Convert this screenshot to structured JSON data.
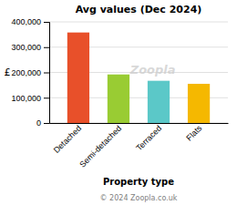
{
  "chart_data": {
    "type": "bar",
    "title": "Avg values (Dec 2024)",
    "categories": [
      "Detached",
      "Semi-detached",
      "Terraced",
      "Flats"
    ],
    "values": [
      358000,
      192000,
      167000,
      155000
    ],
    "colors": [
      "#e8502a",
      "#99cc33",
      "#5bc8c8",
      "#f5b800"
    ],
    "ylabel": "£",
    "xlabel": "Property type",
    "ylim": [
      0,
      400000
    ],
    "yticks": [
      0,
      {
        "value": 100000,
        "label": "100,000"
      },
      {
        "value": 200000,
        "label": "200,000"
      },
      {
        "value": 300000,
        "label": "300,000"
      },
      {
        "value": 400000,
        "label": "400,000"
      }
    ],
    "grid": true,
    "annotations": [
      "Zoopla",
      "© 2024 Zoopla.co.uk"
    ]
  }
}
